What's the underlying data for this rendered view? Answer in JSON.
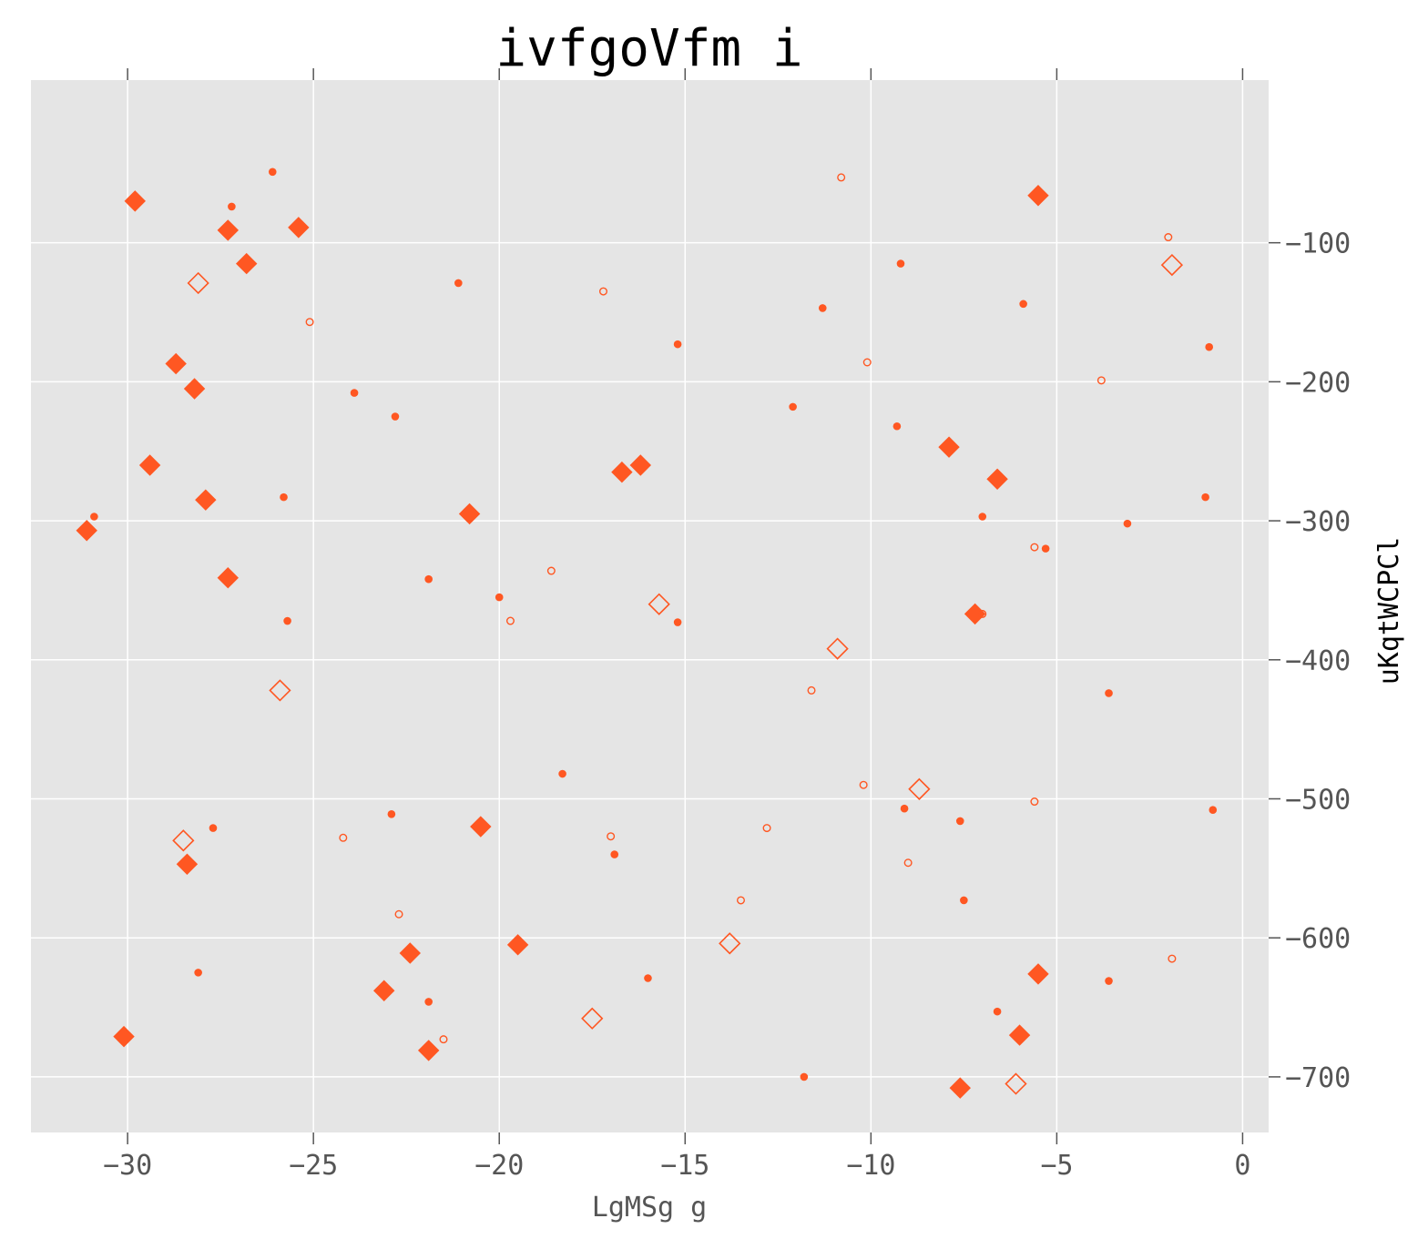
{
  "chart_data": {
    "type": "scatter",
    "title": "ivfgoVfm i",
    "xlabel": "LgMSg g",
    "ylabel": "uKqtWCPCl",
    "xlim": [
      -32.6,
      0.7
    ],
    "ylim": [
      -740,
      17
    ],
    "xticks": [
      -30,
      -25,
      -20,
      -15,
      -10,
      -5,
      0
    ],
    "yticks": [
      -100,
      -200,
      -300,
      -400,
      -500,
      -600,
      -700
    ],
    "xtick_labels": [
      "−30",
      "−25",
      "−20",
      "−15",
      "−10",
      "−5",
      "0"
    ],
    "ytick_labels": [
      "−100",
      "−200",
      "−300",
      "−400",
      "−500",
      "−600",
      "−700"
    ],
    "grid": true,
    "y_axis_side": "right",
    "background": "#e5e5e5",
    "color": "#ff5722",
    "series": [
      {
        "marker": "diamond-filled",
        "points": [
          [
            -29.8,
            -70
          ],
          [
            -27.3,
            -91
          ],
          [
            -25.4,
            -89
          ],
          [
            -26.8,
            -115
          ],
          [
            -28.7,
            -187
          ],
          [
            -28.2,
            -205
          ],
          [
            -29.4,
            -260
          ],
          [
            -27.9,
            -285
          ],
          [
            -31.1,
            -307
          ],
          [
            -27.3,
            -341
          ],
          [
            -16.7,
            -265
          ],
          [
            -16.2,
            -260
          ],
          [
            -20.8,
            -295
          ],
          [
            -5.5,
            -66
          ],
          [
            -7.9,
            -247
          ],
          [
            -6.6,
            -270
          ],
          [
            -7.2,
            -367
          ],
          [
            -20.5,
            -520
          ],
          [
            -28.4,
            -547
          ],
          [
            -19.5,
            -605
          ],
          [
            -22.4,
            -611
          ],
          [
            -23.1,
            -638
          ],
          [
            -30.1,
            -671
          ],
          [
            -21.9,
            -681
          ],
          [
            -5.5,
            -626
          ],
          [
            -6.0,
            -670
          ],
          [
            -7.6,
            -708
          ]
        ]
      },
      {
        "marker": "diamond-open",
        "points": [
          [
            -28.1,
            -129
          ],
          [
            -1.9,
            -116
          ],
          [
            -15.7,
            -360
          ],
          [
            -10.9,
            -392
          ],
          [
            -25.9,
            -422
          ],
          [
            -8.7,
            -493
          ],
          [
            -28.5,
            -530
          ],
          [
            -13.8,
            -604
          ],
          [
            -17.5,
            -658
          ],
          [
            -6.1,
            -705
          ]
        ]
      },
      {
        "marker": "circle-filled",
        "points": [
          [
            -26.1,
            -49
          ],
          [
            -27.2,
            -74
          ],
          [
            -21.1,
            -129
          ],
          [
            -9.2,
            -115
          ],
          [
            -11.3,
            -147
          ],
          [
            -5.9,
            -144
          ],
          [
            -15.2,
            -173
          ],
          [
            -0.9,
            -175
          ],
          [
            -23.9,
            -208
          ],
          [
            -22.8,
            -225
          ],
          [
            -12.1,
            -218
          ],
          [
            -9.3,
            -232
          ],
          [
            -25.8,
            -283
          ],
          [
            -30.9,
            -297
          ],
          [
            -7.0,
            -297
          ],
          [
            -1.0,
            -283
          ],
          [
            -3.1,
            -302
          ],
          [
            -5.3,
            -320
          ],
          [
            -21.9,
            -342
          ],
          [
            -20.0,
            -355
          ],
          [
            -25.7,
            -372
          ],
          [
            -15.2,
            -373
          ],
          [
            -3.6,
            -424
          ],
          [
            -18.3,
            -482
          ],
          [
            -22.9,
            -511
          ],
          [
            -27.7,
            -521
          ],
          [
            -16.9,
            -540
          ],
          [
            -9.1,
            -507
          ],
          [
            -7.6,
            -516
          ],
          [
            -0.8,
            -508
          ],
          [
            -7.5,
            -573
          ],
          [
            -28.1,
            -625
          ],
          [
            -16.0,
            -629
          ],
          [
            -21.9,
            -646
          ],
          [
            -3.6,
            -631
          ],
          [
            -6.6,
            -653
          ],
          [
            -11.8,
            -700
          ]
        ]
      },
      {
        "marker": "circle-open",
        "points": [
          [
            -10.8,
            -53
          ],
          [
            -2.0,
            -96
          ],
          [
            -17.2,
            -135
          ],
          [
            -25.1,
            -157
          ],
          [
            -10.1,
            -186
          ],
          [
            -3.8,
            -199
          ],
          [
            -5.6,
            -319
          ],
          [
            -18.6,
            -336
          ],
          [
            -19.7,
            -372
          ],
          [
            -7.0,
            -367
          ],
          [
            -11.6,
            -422
          ],
          [
            -10.2,
            -490
          ],
          [
            -5.6,
            -502
          ],
          [
            -24.2,
            -528
          ],
          [
            -17.0,
            -527
          ],
          [
            -12.8,
            -521
          ],
          [
            -9.0,
            -546
          ],
          [
            -13.5,
            -573
          ],
          [
            -22.7,
            -583
          ],
          [
            -1.9,
            -615
          ],
          [
            -21.5,
            -673
          ]
        ]
      }
    ]
  }
}
